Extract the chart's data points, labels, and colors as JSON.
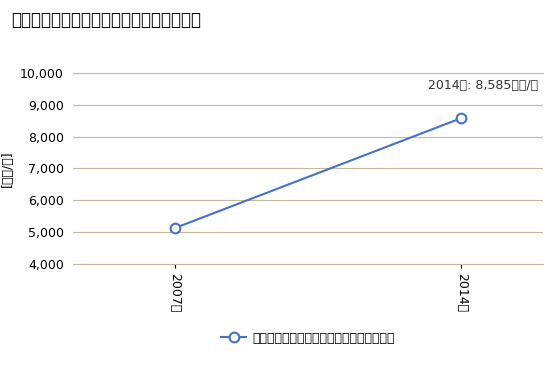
{
  "title": "卸売業の従業者一人当たり年間商品販売額",
  "ylabel": "[万円/人]",
  "annotation": "2014年: 8,585万円/人",
  "years": [
    2007,
    2014
  ],
  "values": [
    5120,
    8585
  ],
  "ylim": [
    4000,
    10000
  ],
  "yticks": [
    4000,
    5000,
    6000,
    7000,
    8000,
    9000,
    10000
  ],
  "line_color": "#4472C4",
  "marker": "o",
  "marker_facecolor": "white",
  "marker_edgecolor": "#4472C4",
  "legend_label": "卸売業の従業者一人当たり年間商品販売額",
  "bg_color": "#FFFFFF",
  "plot_bg_color": "#FFFFFF",
  "grid_color": "#C8B89A",
  "title_fontsize": 12,
  "label_fontsize": 9,
  "tick_fontsize": 9,
  "annotation_fontsize": 9
}
